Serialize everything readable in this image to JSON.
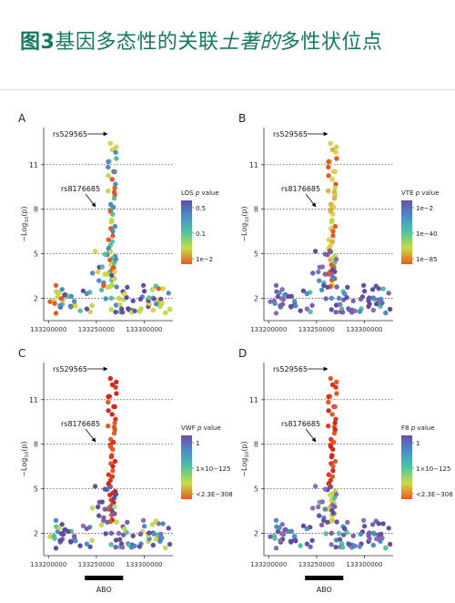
{
  "header": {
    "figure_label": "图3",
    "title_main": "基因多态性的关联",
    "title_italic": "土著的",
    "title_end": "多性状位点"
  },
  "chart_data": [
    {
      "type": "scatter",
      "panel": "A",
      "ylabel_prefix": "−Log",
      "ylabel_sub": "10",
      "ylabel_suffix": "(p)",
      "yticks": [
        "2",
        "5",
        "8",
        "11"
      ],
      "xticks": [
        "133200000",
        "133250000",
        "133300000"
      ],
      "legend_title_prefix": "LOS ",
      "legend_title_italic": "p",
      "legend_title_suffix": " value",
      "legend_labels": [
        "0.5",
        "0.1",
        "1e−2"
      ],
      "legend_colors": [
        "#5b4ea8",
        "#4a8fc8",
        "#52c4a1",
        "#c8dc45",
        "#e85a22"
      ],
      "annotations": [
        "rs529565",
        "rs8176685"
      ],
      "color_scheme": "mixed",
      "xlim": [
        133195000,
        133330000
      ],
      "ylim": [
        0.5,
        13.5
      ],
      "grid_lines": [
        2,
        5,
        8,
        11
      ]
    },
    {
      "type": "scatter",
      "panel": "B",
      "ylabel_prefix": "−Log",
      "ylabel_sub": "10",
      "ylabel_suffix": "(p)",
      "yticks": [
        "2",
        "5",
        "8",
        "11"
      ],
      "xticks": [
        "133200000",
        "133250000",
        "133300000"
      ],
      "legend_title_prefix": "VTE ",
      "legend_title_italic": "p",
      "legend_title_suffix": " value",
      "legend_labels": [
        "1e−2",
        "1e−40",
        "1e−85"
      ],
      "legend_colors": [
        "#6a4fa5",
        "#4a8fc8",
        "#52c4a1",
        "#c8dc45",
        "#e85a22"
      ],
      "annotations": [
        "rs529565",
        "rs8176685"
      ],
      "color_scheme": "yellow_top",
      "xlim": [
        133195000,
        133330000
      ],
      "ylim": [
        0.5,
        13.5
      ],
      "grid_lines": [
        2,
        5,
        8,
        11
      ]
    },
    {
      "type": "scatter",
      "panel": "C",
      "ylabel_prefix": "−Log",
      "ylabel_sub": "10",
      "ylabel_suffix": "(p)",
      "yticks": [
        "2",
        "5",
        "8",
        "11"
      ],
      "xticks": [
        "133200000",
        "133250000",
        "133300000"
      ],
      "legend_title_prefix": "VWF ",
      "legend_title_italic": "p",
      "legend_title_suffix": " value",
      "legend_labels": [
        "1",
        "1×10−125",
        "<2.3E−308"
      ],
      "legend_colors": [
        "#6a4fa5",
        "#4a8fc8",
        "#52c4a1",
        "#c8dc45",
        "#e85a22"
      ],
      "annotations": [
        "rs529565",
        "rs8176685"
      ],
      "color_scheme": "red_top",
      "xlim": [
        133195000,
        133330000
      ],
      "ylim": [
        0.5,
        13.5
      ],
      "grid_lines": [
        2,
        5,
        8,
        11
      ],
      "gene_label": "ABO"
    },
    {
      "type": "scatter",
      "panel": "D",
      "ylabel_prefix": "−Log",
      "ylabel_sub": "10",
      "ylabel_suffix": "(p)",
      "yticks": [
        "2",
        "5",
        "8",
        "11"
      ],
      "xticks": [
        "133200000",
        "133250000",
        "133300000"
      ],
      "legend_title_prefix": "F8 ",
      "legend_title_italic": "p",
      "legend_title_suffix": " value",
      "legend_labels": [
        "1",
        "1×10−125",
        "<2.3E−308"
      ],
      "legend_colors": [
        "#6a4fa5",
        "#4a8fc8",
        "#52c4a1",
        "#c8dc45",
        "#e85a22"
      ],
      "annotations": [
        "rs529565",
        "rs8176685"
      ],
      "color_scheme": "red_top_f8",
      "xlim": [
        133195000,
        133330000
      ],
      "ylim": [
        0.5,
        13.5
      ],
      "grid_lines": [
        2,
        5,
        8,
        11
      ],
      "gene_label": "ABO"
    }
  ]
}
